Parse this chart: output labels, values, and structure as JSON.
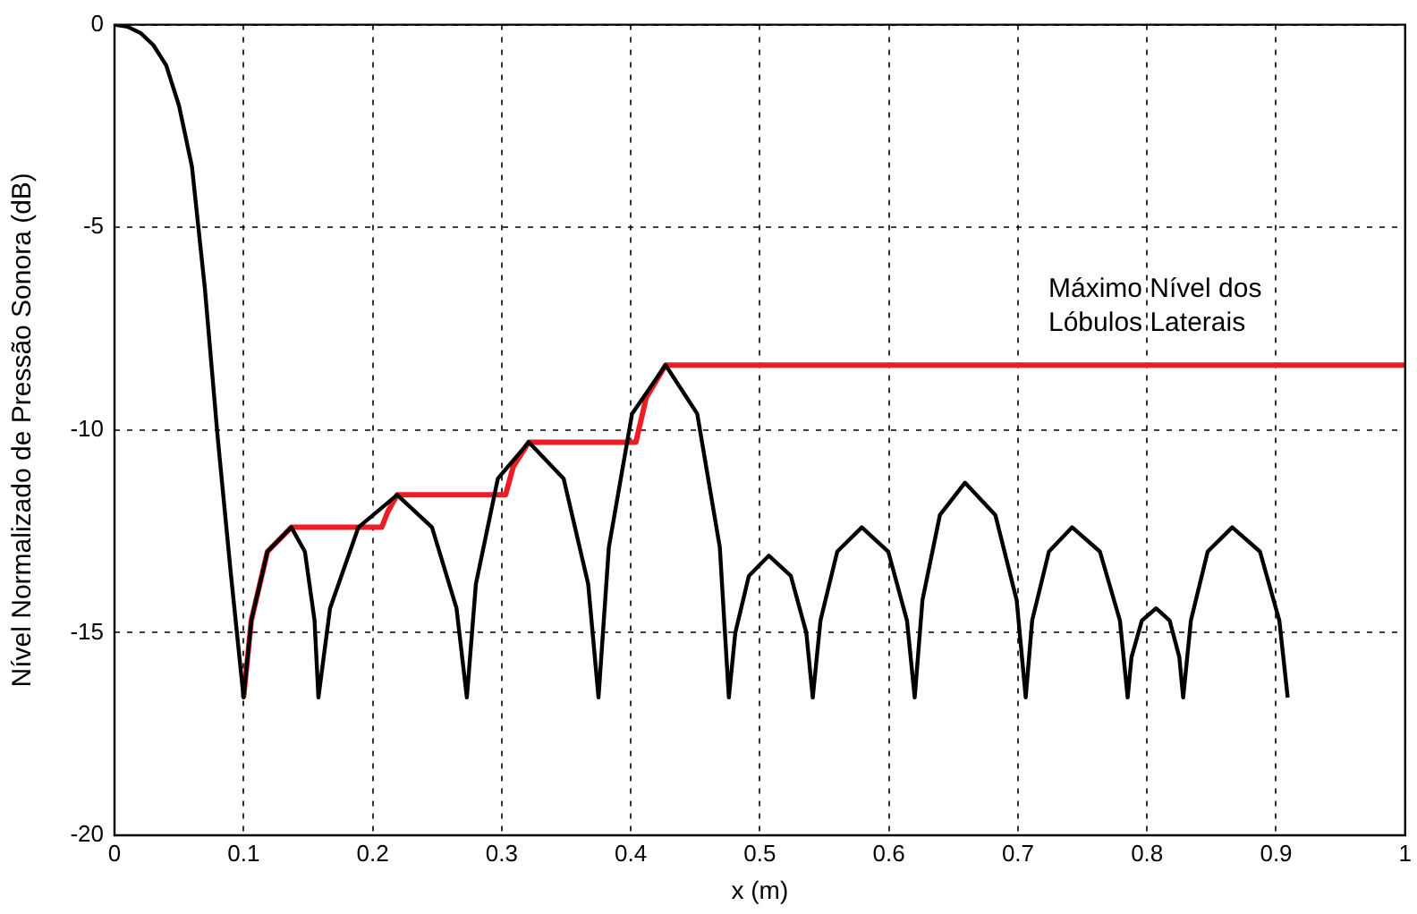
{
  "chart_data": {
    "type": "line",
    "xlabel": "x (m)",
    "ylabel": "Nível Normalizado de Pressão Sonora (dB)",
    "xlim": [
      0,
      1
    ],
    "xticks": [
      0,
      0.1,
      0.2,
      0.3,
      0.4,
      0.5,
      0.6,
      0.7,
      0.8,
      0.9,
      1
    ],
    "ylim": [
      -20,
      0
    ],
    "yticks": [
      -20,
      -15,
      -10,
      -5,
      0
    ],
    "grid": true,
    "series": [
      {
        "color": "#000000",
        "x": [
          0,
          0.01,
          0.02,
          0.03,
          0.04,
          0.05,
          0.06,
          0.07,
          0.08,
          0.09,
          0.1,
          0.106,
          0.1185,
          0.137,
          0.1475,
          0.155,
          0.158,
          0.167,
          0.189,
          0.219,
          0.246,
          0.265,
          0.273,
          0.28,
          0.297,
          0.321,
          0.348,
          0.367,
          0.375,
          0.383,
          0.401,
          0.427,
          0.4515,
          0.469,
          0.476,
          0.481,
          0.4915,
          0.507,
          0.524,
          0.536,
          0.541,
          0.547,
          0.56,
          0.579,
          0.5995,
          0.614,
          0.62,
          0.626,
          0.6395,
          0.659,
          0.6825,
          0.699,
          0.706,
          0.711,
          0.724,
          0.742,
          0.7635,
          0.779,
          0.785,
          0.788,
          0.796,
          0.807,
          0.8175,
          0.825,
          0.828,
          0.834,
          0.847,
          0.866,
          0.8875,
          0.9025,
          0.909
        ],
        "values": [
          0,
          -0.05,
          -0.2,
          -0.5,
          -1.0,
          -2.0,
          -3.5,
          -6.5,
          -10.2,
          -13.5,
          -16.6,
          -14.7,
          -13.0,
          -12.4,
          -13.0,
          -14.7,
          -16.6,
          -14.4,
          -12.4,
          -11.6,
          -12.4,
          -14.4,
          -16.6,
          -13.8,
          -11.2,
          -10.3,
          -11.2,
          -13.8,
          -16.6,
          -12.9,
          -9.6,
          -8.4,
          -9.6,
          -12.9,
          -16.6,
          -15.0,
          -13.6,
          -13.1,
          -13.6,
          -15.0,
          -16.6,
          -14.7,
          -13.0,
          -12.4,
          -13.0,
          -14.7,
          -16.6,
          -14.2,
          -12.1,
          -11.3,
          -12.1,
          -14.2,
          -16.6,
          -14.7,
          -13.0,
          -12.4,
          -13.0,
          -14.7,
          -16.6,
          -15.6,
          -14.7,
          -14.4,
          -14.7,
          -15.6,
          -16.6,
          -14.7,
          -13.0,
          -12.4,
          -13.0,
          -14.7,
          -16.6
        ]
      },
      {
        "color": "#ee1c25",
        "x": [
          0.1,
          0.106,
          0.1185,
          0.137,
          0.207,
          0.212,
          0.219,
          0.303,
          0.309,
          0.321,
          0.404,
          0.412,
          0.427,
          1
        ],
        "values": [
          -16.6,
          -14.7,
          -13.0,
          -12.4,
          -12.4,
          -12.0,
          -11.6,
          -11.6,
          -10.9,
          -10.3,
          -10.3,
          -9.2,
          -8.4,
          -8.4
        ]
      }
    ],
    "annotations": [
      "Máximo Nível dos Lóbulos Laterais"
    ]
  }
}
